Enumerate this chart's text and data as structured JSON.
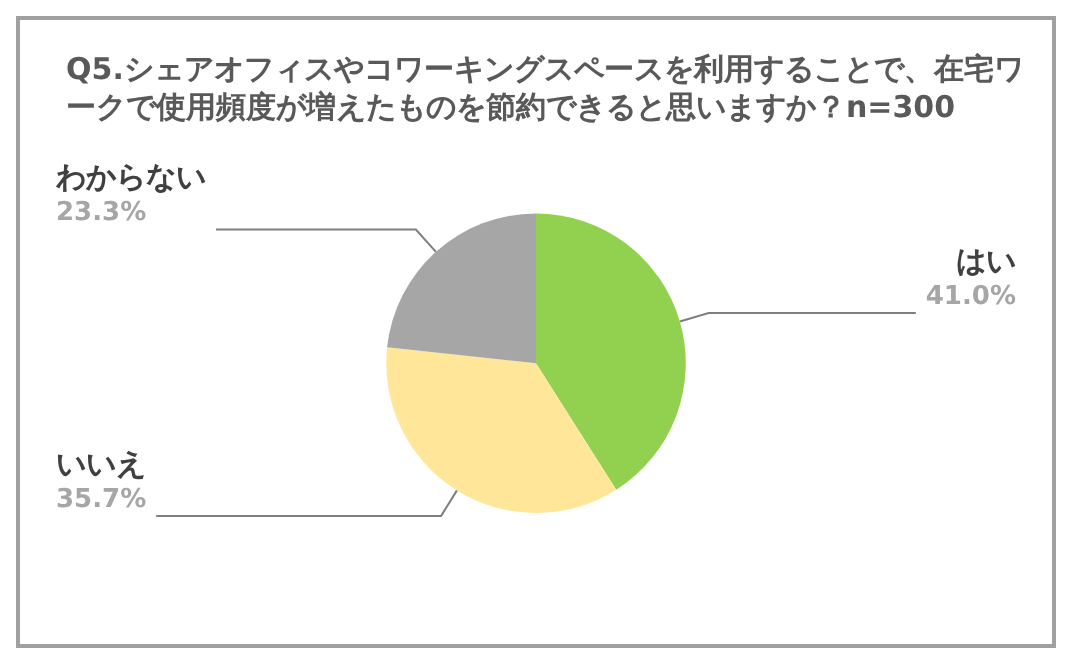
{
  "chart_data": {
    "type": "pie",
    "title": "Q5.シェアオフィスやコワーキングスペースを利用することで、在宅ワークで使用頻度が増えたものを節約できると思いますか？n=300",
    "categories": [
      "はい",
      "いいえ",
      "わからない"
    ],
    "values": [
      41.0,
      35.7,
      23.3
    ],
    "colors": [
      "#92d050",
      "#ffe699",
      "#a6a6a6"
    ],
    "value_labels": [
      "41.0%",
      "35.7%",
      "23.3%"
    ],
    "legend": false
  }
}
